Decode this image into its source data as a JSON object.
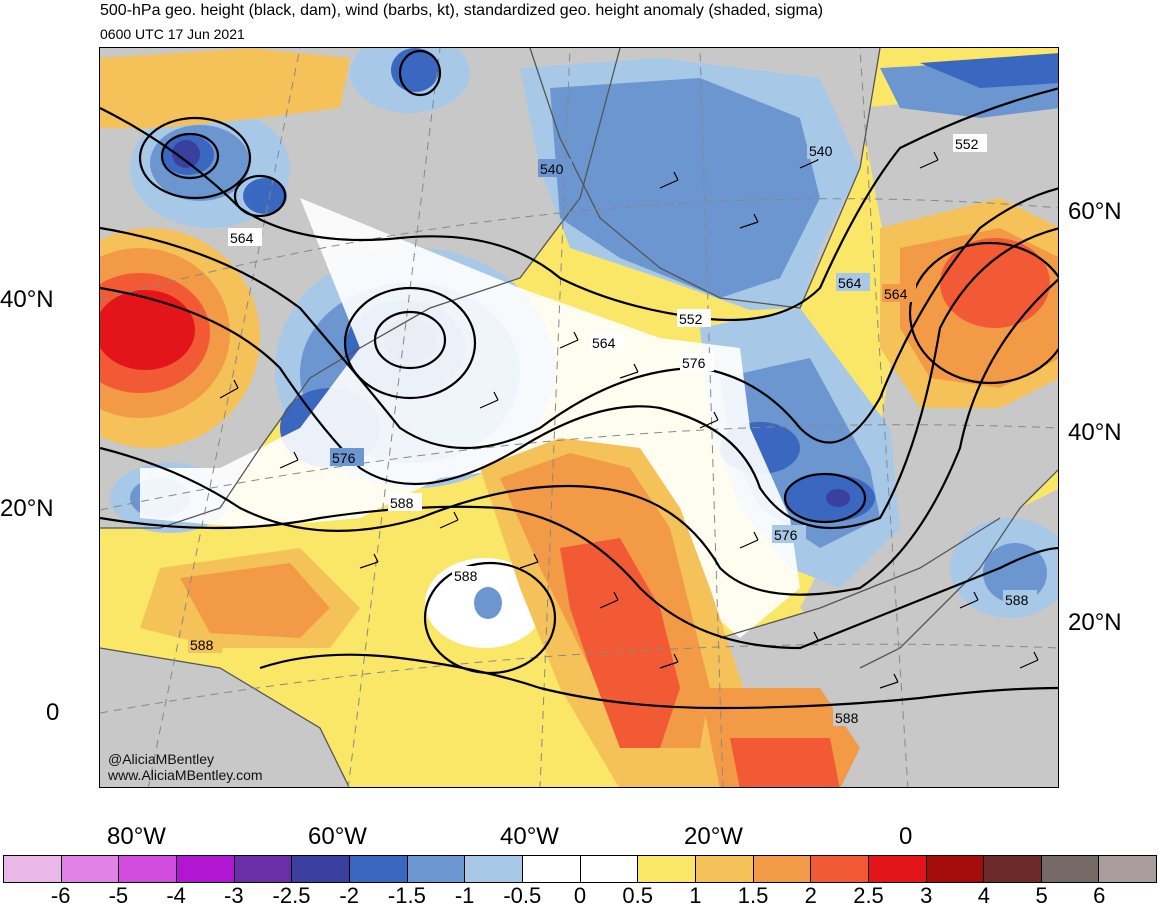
{
  "header": {
    "title": "500-hPa geo. height (black, dam), wind (barbs, kt), standardized geo. height anomaly (shaded, sigma)",
    "subtitle": "0600 UTC 17 Jun 2021"
  },
  "map": {
    "left_lat_labels": [
      "40°N",
      "20°N",
      "0"
    ],
    "right_lat_labels": [
      "60°N",
      "40°N",
      "20°N"
    ],
    "lon_labels": [
      "80°W",
      "60°W",
      "40°W",
      "20°W",
      "0"
    ],
    "contour_labels": [
      "540",
      "540",
      "552",
      "552",
      "564",
      "564",
      "564",
      "564",
      "576",
      "576",
      "576",
      "588",
      "588",
      "588",
      "588",
      "588"
    ],
    "watermark_lines": [
      "@AliciaMBentley",
      "www.AliciaMBentley.com"
    ],
    "land_color": "#c8c8c8",
    "coast_color": "#555555"
  },
  "colorbar": {
    "colors": [
      "#eab8e8",
      "#e183e6",
      "#d24ce0",
      "#b116d2",
      "#6a2fa8",
      "#3a3fa0",
      "#3a67c0",
      "#6b96d0",
      "#a8c8e8",
      "#ffffff",
      "#ffffff",
      "#fae768",
      "#f5c159",
      "#f39a47",
      "#f25a36",
      "#e4141b",
      "#a40c0c",
      "#6d2a2a",
      "#766a68",
      "#a99d9d"
    ],
    "tick_labels": [
      "-6",
      "-5",
      "-4",
      "-3",
      "-2.5",
      "-2",
      "-1.5",
      "-1",
      "-0.5",
      "0",
      "0.5",
      "1",
      "1.5",
      "2",
      "2.5",
      "3",
      "4",
      "5",
      "6"
    ]
  }
}
